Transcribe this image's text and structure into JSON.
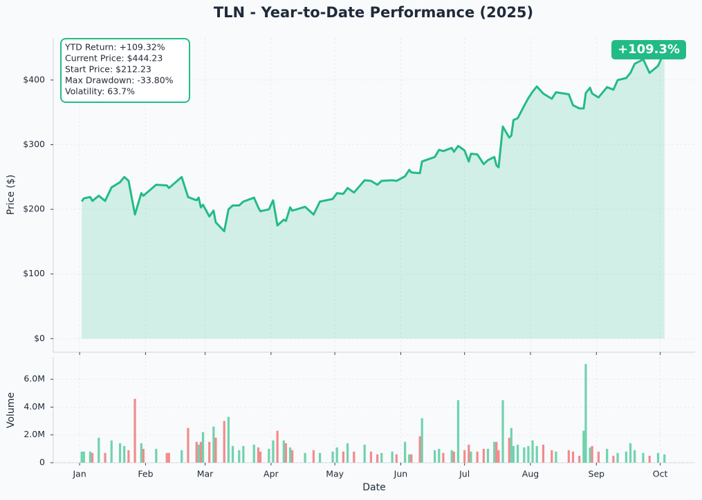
{
  "chart_data": {
    "type": "line",
    "title": "TLN - Year-to-Date Performance (2025)",
    "xlabel": "Date",
    "ylabel": "Price ($)",
    "color": "#22bb85",
    "grid": true,
    "xlim": [
      -11.4,
      290.4
    ],
    "xticks": [
      {
        "value": 1,
        "label": "Jan"
      },
      {
        "value": 32,
        "label": "Feb"
      },
      {
        "value": 60,
        "label": "Mar"
      },
      {
        "value": 91,
        "label": "Apr"
      },
      {
        "value": 121,
        "label": "May"
      },
      {
        "value": 152,
        "label": "Jun"
      },
      {
        "value": 182,
        "label": "Jul"
      },
      {
        "value": 213,
        "label": "Aug"
      },
      {
        "value": 244,
        "label": "Sep"
      },
      {
        "value": 274,
        "label": "Oct"
      }
    ],
    "ylim": [
      -21,
      465
    ],
    "yticks": [
      {
        "value": 0,
        "label": "$0"
      },
      {
        "value": 100,
        "label": "$100"
      },
      {
        "value": 200,
        "label": "$200"
      },
      {
        "value": 300,
        "label": "$300"
      },
      {
        "value": 400,
        "label": "$400"
      }
    ],
    "x": [
      2,
      3,
      6,
      7,
      10,
      13,
      16,
      20,
      22,
      24,
      27,
      30,
      31,
      37,
      42,
      43,
      49,
      52,
      56,
      57,
      58,
      59,
      62,
      64,
      65,
      69,
      71,
      73,
      76,
      78,
      83,
      85,
      86,
      90,
      92,
      94,
      97,
      98,
      100,
      101,
      107,
      111,
      114,
      120,
      122,
      125,
      127,
      130,
      135,
      138,
      141,
      143,
      148,
      150,
      154,
      156,
      157,
      161,
      162,
      168,
      170,
      172,
      176,
      177,
      179,
      182,
      184,
      185,
      188,
      191,
      193,
      196,
      197,
      198,
      200,
      203,
      204,
      205,
      207,
      210,
      212,
      214,
      216,
      219,
      223,
      225,
      231,
      233,
      236,
      238,
      239,
      241,
      242,
      245,
      249,
      252,
      254,
      258,
      260,
      262,
      266,
      269,
      273,
      276
    ],
    "values": [
      212.23,
      217,
      219,
      213,
      221,
      213,
      234,
      242,
      250,
      244,
      192,
      225,
      221,
      238,
      237,
      233,
      250,
      219,
      214,
      218,
      203,
      207,
      189,
      198,
      180,
      166,
      200,
      206,
      206,
      212,
      218,
      203,
      197,
      200,
      214,
      175,
      184,
      182,
      203,
      198,
      204,
      192,
      212,
      216,
      225,
      224,
      233,
      226,
      245,
      244,
      238,
      244,
      245,
      244,
      251,
      261,
      257,
      256,
      274,
      281,
      292,
      290,
      295,
      289,
      298,
      291,
      274,
      286,
      285,
      270,
      276,
      281,
      268,
      265,
      328,
      311,
      314,
      338,
      341,
      360,
      372,
      382,
      390,
      379,
      371,
      381,
      378,
      361,
      356,
      356,
      380,
      388,
      379,
      373,
      389,
      385,
      400,
      403,
      411,
      425,
      432,
      411,
      422,
      444.23
    ],
    "annotation": [
      "YTD Return: +109.32%",
      "Current Price: $444.23",
      "Start Price: $212.23",
      "Max Drawdown: -33.80%",
      "Volatility: 63.7%"
    ],
    "badge": "+109.3%",
    "volume": {
      "type": "bar",
      "ylabel": "Volume",
      "up_color": "#6fd3ad",
      "down_color": "#f28b8b",
      "ylim": [
        0,
        7600000
      ],
      "yticks": [
        0,
        {
          "value": 2000000,
          "label": "2.0M"
        },
        {
          "value": 4000000,
          "label": "4.0M"
        },
        {
          "value": 6000000,
          "label": "6.0M"
        }
      ],
      "values": [
        800000,
        800000,
        800000,
        700000,
        1800000,
        700000,
        1600000,
        1400000,
        1200000,
        900000,
        4600000,
        1400000,
        1000000,
        1000000,
        700000,
        700000,
        900000,
        2500000,
        1500000,
        1300000,
        1500000,
        2200000,
        1500000,
        2600000,
        1800000,
        3000000,
        3300000,
        1200000,
        900000,
        1200000,
        1300000,
        1100000,
        800000,
        1000000,
        1600000,
        2300000,
        1600000,
        1400000,
        1100000,
        900000,
        700000,
        900000,
        700000,
        800000,
        1100000,
        800000,
        1400000,
        800000,
        1300000,
        800000,
        600000,
        700000,
        800000,
        600000,
        1500000,
        600000,
        600000,
        1900000,
        3200000,
        900000,
        1000000,
        700000,
        900000,
        800000,
        4500000,
        900000,
        1300000,
        800000,
        800000,
        1000000,
        1000000,
        1500000,
        1500000,
        900000,
        4500000,
        1800000,
        2500000,
        1200000,
        1300000,
        1100000,
        1200000,
        1600000,
        1200000,
        1300000,
        900000,
        800000,
        900000,
        800000,
        500000,
        2300000,
        7100000,
        1100000,
        1200000,
        800000,
        1000000,
        500000,
        700000,
        800000,
        1400000,
        900000,
        700000,
        500000,
        700000,
        600000
      ]
    }
  }
}
